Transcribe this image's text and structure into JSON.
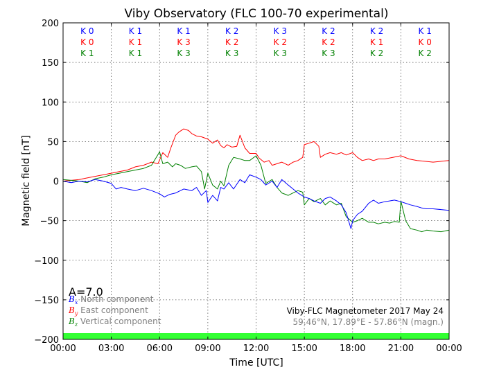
{
  "chart_data": {
    "type": "line",
    "title": "Viby Observatory (FLC 100-70 experimental)",
    "xlabel": "Time [UTC]",
    "ylabel": "Magnetic field [nT]",
    "xlim_hours": [
      0,
      24
    ],
    "ylim": [
      -200,
      200
    ],
    "x_ticks": [
      "00:00",
      "03:00",
      "06:00",
      "09:00",
      "12:00",
      "15:00",
      "18:00",
      "21:00",
      "00:00"
    ],
    "y_ticks": [
      "200",
      "150",
      "100",
      "50",
      "0",
      "−50",
      "−100",
      "−150",
      "−200"
    ],
    "grid": true,
    "k_index_rows": [
      {
        "color": "#0000ff",
        "labels": [
          "K 0",
          "K 1",
          "K 1",
          "K 2",
          "K 3",
          "K 2",
          "K 2",
          "K 1"
        ]
      },
      {
        "color": "#ff0000",
        "labels": [
          "K 0",
          "K 1",
          "K 3",
          "K 2",
          "K 2",
          "K 2",
          "K 1",
          "K 0"
        ]
      },
      {
        "color": "#008000",
        "labels": [
          "K 1",
          "K 1",
          "K 3",
          "K 3",
          "K 3",
          "K 3",
          "K 2",
          "K 2"
        ]
      }
    ],
    "a_index": "A=7.0",
    "legend": [
      {
        "symbol": "B",
        "sub": "x",
        "text": "North component",
        "color": "#0000ff"
      },
      {
        "symbol": "B",
        "sub": "y",
        "text": "East component",
        "color": "#ff0000"
      },
      {
        "symbol": "B",
        "sub": "z",
        "text": "Vertical component",
        "color": "#008000"
      }
    ],
    "info_line1": "Viby-FLC Magnetometer 2017 May 24",
    "info_line2": "59.46°N, 17.89°E - 57.86°N (magn.)",
    "status_bar_color": "#33ff33",
    "series": [
      {
        "color": "#ff0000",
        "x": [
          0,
          0.5,
          1,
          1.5,
          2,
          2.5,
          3,
          3.5,
          4,
          4.5,
          5,
          5.5,
          5.9,
          6.2,
          6.5,
          6.7,
          7,
          7.2,
          7.5,
          7.8,
          8,
          8.3,
          8.6,
          9,
          9.3,
          9.6,
          9.8,
          10,
          10.2,
          10.5,
          10.8,
          11,
          11.3,
          11.6,
          12,
          12.2,
          12.5,
          12.8,
          13,
          13.3,
          13.6,
          14,
          14.3,
          14.6,
          14.9,
          15,
          15.3,
          15.6,
          15.9,
          16,
          16.3,
          16.6,
          17,
          17.3,
          17.6,
          18,
          18.3,
          18.6,
          19,
          19.3,
          19.6,
          20,
          20.5,
          21,
          21.5,
          22,
          22.5,
          23,
          23.5,
          24
        ],
        "y": [
          0,
          1,
          2,
          4,
          6,
          8,
          10,
          12,
          14,
          18,
          20,
          24,
          22,
          36,
          30,
          42,
          58,
          62,
          66,
          64,
          60,
          57,
          56,
          53,
          48,
          52,
          45,
          42,
          46,
          43,
          44,
          58,
          42,
          35,
          35,
          29,
          24,
          26,
          20,
          22,
          24,
          20,
          24,
          26,
          30,
          46,
          48,
          50,
          44,
          30,
          34,
          36,
          34,
          36,
          33,
          36,
          30,
          26,
          28,
          26,
          28,
          28,
          30,
          32,
          28,
          26,
          25,
          24,
          25,
          26
        ]
      },
      {
        "color": "#008000",
        "x": [
          0,
          0.5,
          1,
          1.5,
          2,
          2.5,
          3,
          3.5,
          4,
          4.5,
          5,
          5.5,
          6,
          6.2,
          6.5,
          6.8,
          7,
          7.3,
          7.6,
          8,
          8.3,
          8.6,
          8.8,
          9,
          9.3,
          9.6,
          9.8,
          10,
          10.3,
          10.6,
          11,
          11.3,
          11.6,
          12,
          12.3,
          12.6,
          13,
          13.3,
          13.6,
          14,
          14.3,
          14.6,
          14.9,
          15,
          15.3,
          15.6,
          16,
          16.3,
          16.6,
          17,
          17.3,
          17.6,
          17.9,
          18,
          18.3,
          18.6,
          19,
          19.3,
          19.6,
          20,
          20.3,
          20.6,
          20.9,
          21,
          21.3,
          21.6,
          22,
          22.3,
          22.6,
          23,
          23.5,
          24
        ],
        "y": [
          2,
          1,
          0,
          -2,
          3,
          5,
          8,
          10,
          12,
          14,
          16,
          20,
          37,
          22,
          24,
          18,
          22,
          20,
          16,
          18,
          19,
          12,
          -10,
          10,
          -5,
          -10,
          0,
          -6,
          20,
          30,
          28,
          26,
          26,
          32,
          20,
          -3,
          2,
          -8,
          -15,
          -18,
          -15,
          -12,
          -14,
          -30,
          -22,
          -26,
          -22,
          -30,
          -25,
          -30,
          -28,
          -45,
          -50,
          -52,
          -50,
          -47,
          -52,
          -52,
          -54,
          -52,
          -53,
          -51,
          -52,
          -25,
          -50,
          -60,
          -62,
          -64,
          -62,
          -63,
          -64,
          -62
        ]
      },
      {
        "color": "#0000ff",
        "x": [
          0,
          0.5,
          1,
          1.5,
          2,
          2.5,
          3,
          3.3,
          3.6,
          4,
          4.5,
          5,
          5.5,
          6,
          6.3,
          6.6,
          7,
          7.5,
          8,
          8.3,
          8.6,
          8.9,
          9,
          9.3,
          9.6,
          9.8,
          10,
          10.3,
          10.6,
          11,
          11.3,
          11.6,
          12,
          12.3,
          12.6,
          13,
          13.3,
          13.6,
          14,
          14.3,
          14.6,
          15,
          15.3,
          15.6,
          16,
          16.3,
          16.6,
          17,
          17.3,
          17.6,
          17.9,
          18,
          18.3,
          18.6,
          19,
          19.3,
          19.6,
          20,
          20.3,
          20.6,
          21,
          21.3,
          21.6,
          22,
          22.3,
          22.6,
          23,
          23.5,
          24
        ],
        "y": [
          0,
          -2,
          0,
          -1,
          2,
          0,
          -3,
          -10,
          -8,
          -10,
          -12,
          -9,
          -12,
          -16,
          -20,
          -17,
          -15,
          -10,
          -12,
          -8,
          -18,
          -12,
          -27,
          -18,
          -25,
          -8,
          -10,
          -2,
          -10,
          2,
          -2,
          8,
          5,
          2,
          -5,
          0,
          -8,
          2,
          -5,
          -10,
          -15,
          -20,
          -22,
          -25,
          -28,
          -22,
          -20,
          -25,
          -30,
          -40,
          -60,
          -50,
          -42,
          -38,
          -28,
          -24,
          -28,
          -26,
          -25,
          -24,
          -26,
          -28,
          -30,
          -32,
          -34,
          -35,
          -35,
          -36,
          -37
        ]
      }
    ]
  }
}
